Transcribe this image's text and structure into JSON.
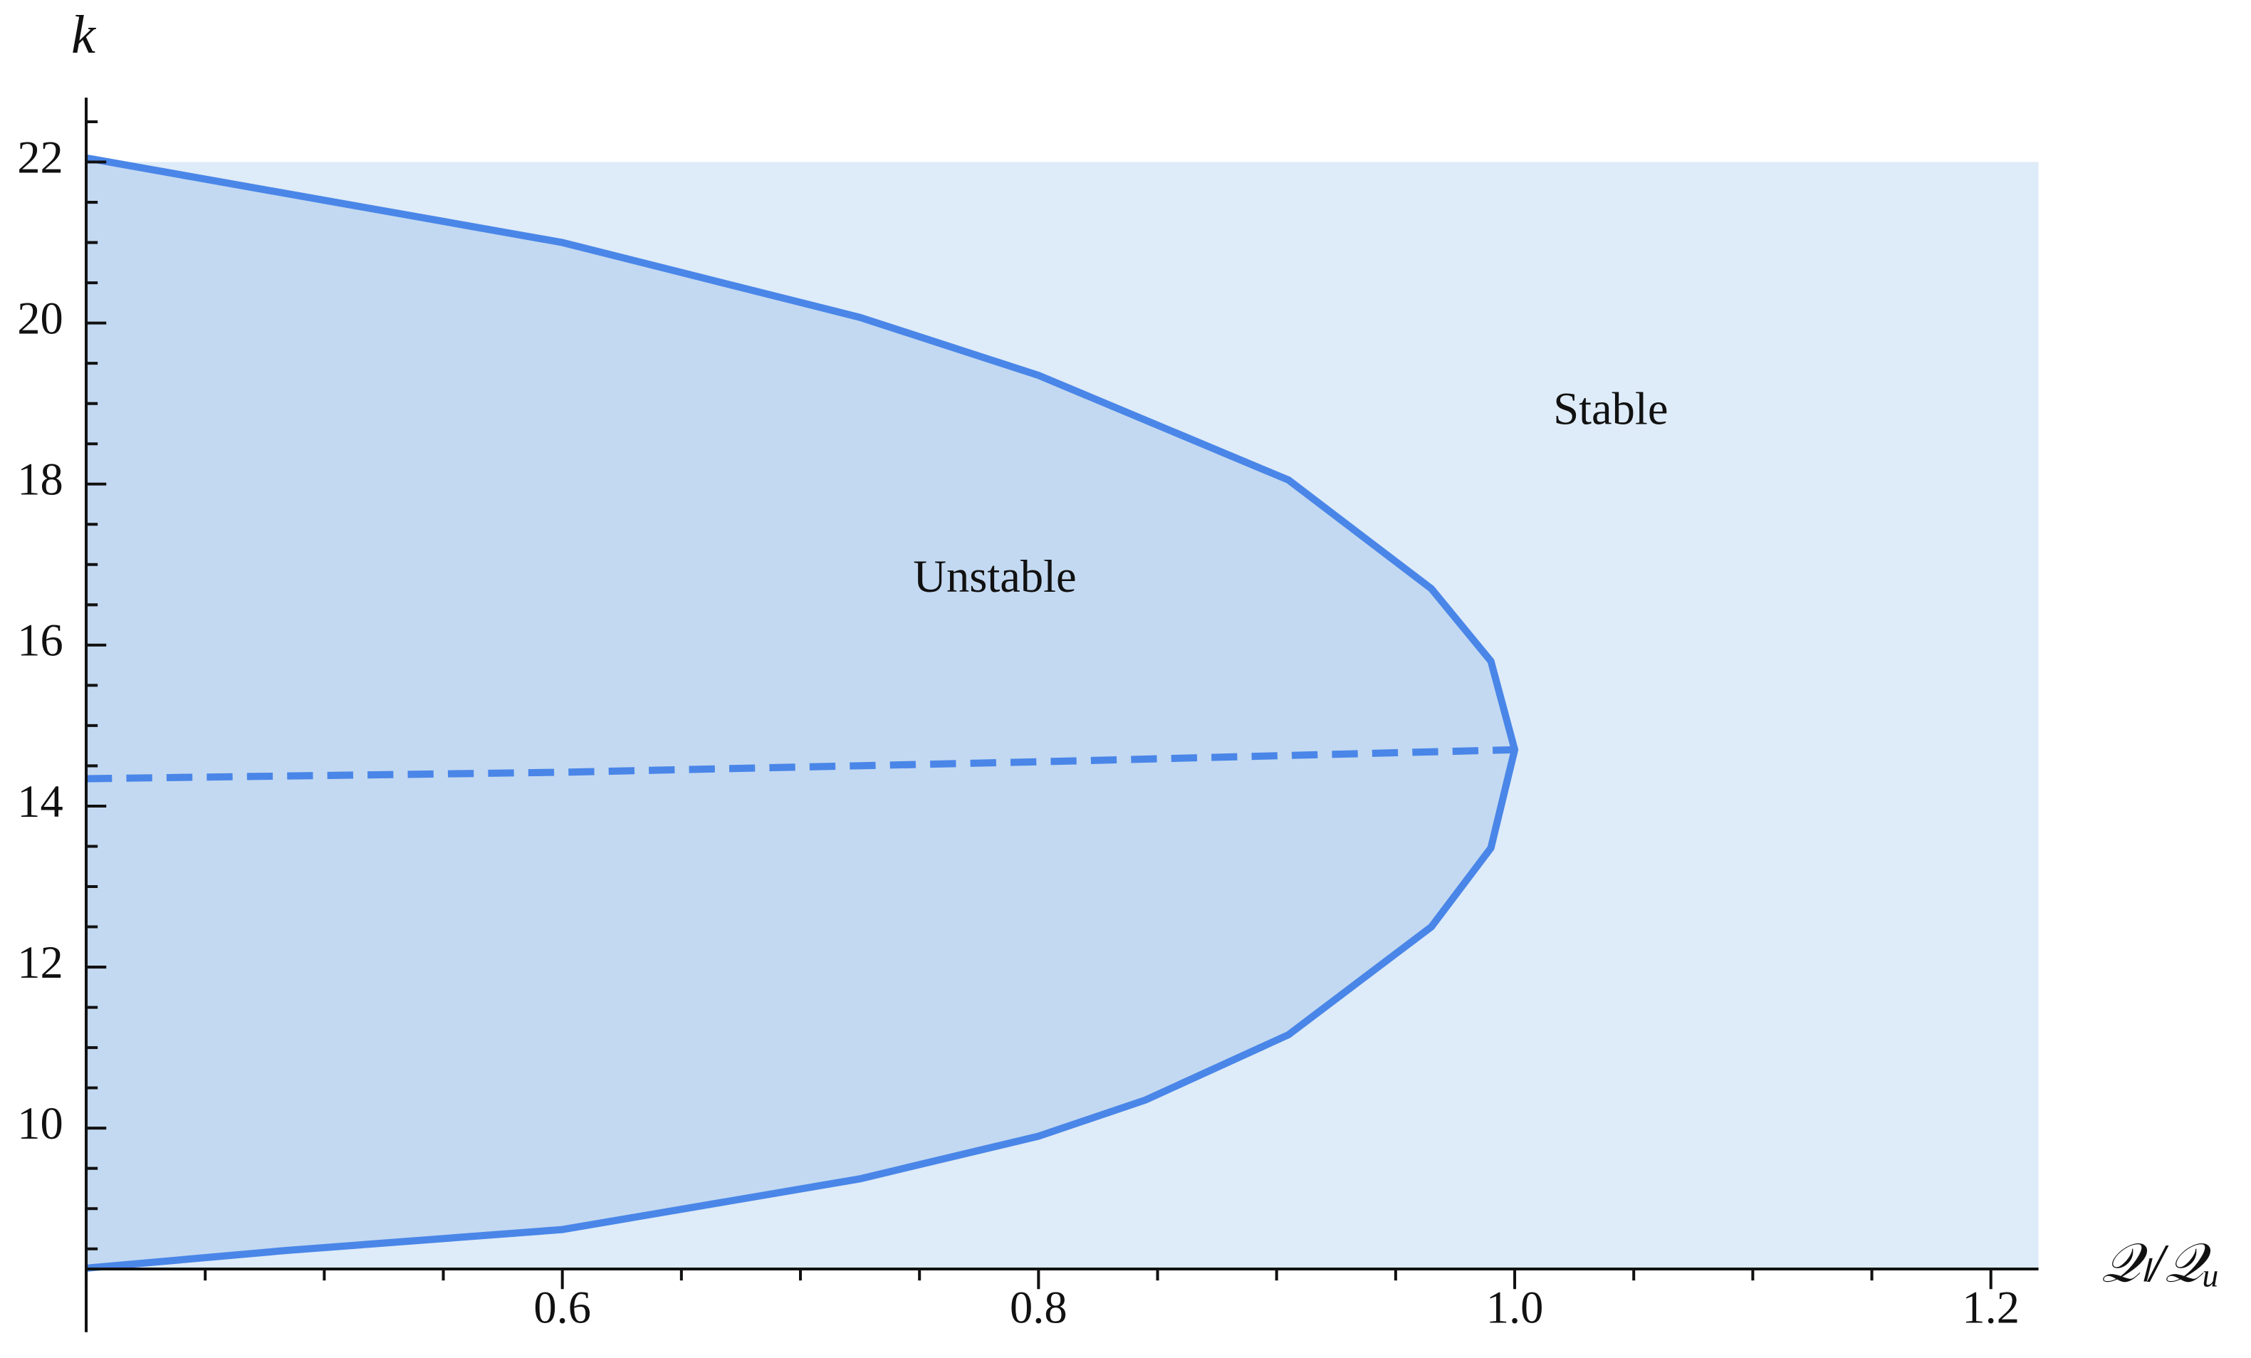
{
  "chart_data": {
    "type": "region",
    "xlabel": "𝒬ₗ/𝒬ᵤ",
    "ylabel": "k",
    "xlim": [
      0.4,
      1.22
    ],
    "ylim": [
      8.25,
      22.8
    ],
    "xticks": [
      0.6,
      0.8,
      {
        "value": 1,
        "label": "1.0"
      },
      1.2
    ],
    "yticks": [
      10,
      12,
      14,
      16,
      18,
      20,
      22
    ],
    "xminorticks": [
      0.4,
      0.45,
      0.5,
      0.55,
      0.65,
      0.7,
      0.75,
      0.85,
      0.9,
      0.95,
      1.05,
      1.1,
      1.15
    ],
    "yminorticks": [
      8.5,
      9,
      9.5,
      10.5,
      11,
      11.5,
      12.5,
      13,
      13.5,
      14.5,
      15,
      15.5,
      16.5,
      17,
      17.5,
      18.5,
      19,
      19.5,
      20.5,
      21,
      21.5,
      22.5
    ],
    "stable_color": "#deebf8",
    "unstable_color": "#c3d9f1",
    "series": [
      {
        "style": "solid",
        "color": "#4a86e8",
        "x": [
          0.4,
          0.6,
          0.725,
          0.8,
          0.905,
          0.965,
          0.99,
          1.0,
          0.99,
          0.965,
          0.905,
          0.845,
          0.8,
          0.725,
          0.6,
          0.484,
          0.4
        ],
        "y": [
          22.05,
          21.0,
          20.07,
          19.35,
          18.05,
          16.7,
          15.8,
          14.7,
          13.48,
          12.5,
          11.16,
          10.35,
          9.9,
          9.37,
          8.74,
          8.48,
          8.26
        ]
      },
      {
        "style": "dashed",
        "color": "#4a86e8",
        "x": [
          0.4,
          0.6,
          0.8,
          1.0
        ],
        "y": [
          14.34,
          14.42,
          14.55,
          14.7
        ]
      }
    ],
    "annotations": [
      "Unstable",
      "Stable"
    ]
  }
}
